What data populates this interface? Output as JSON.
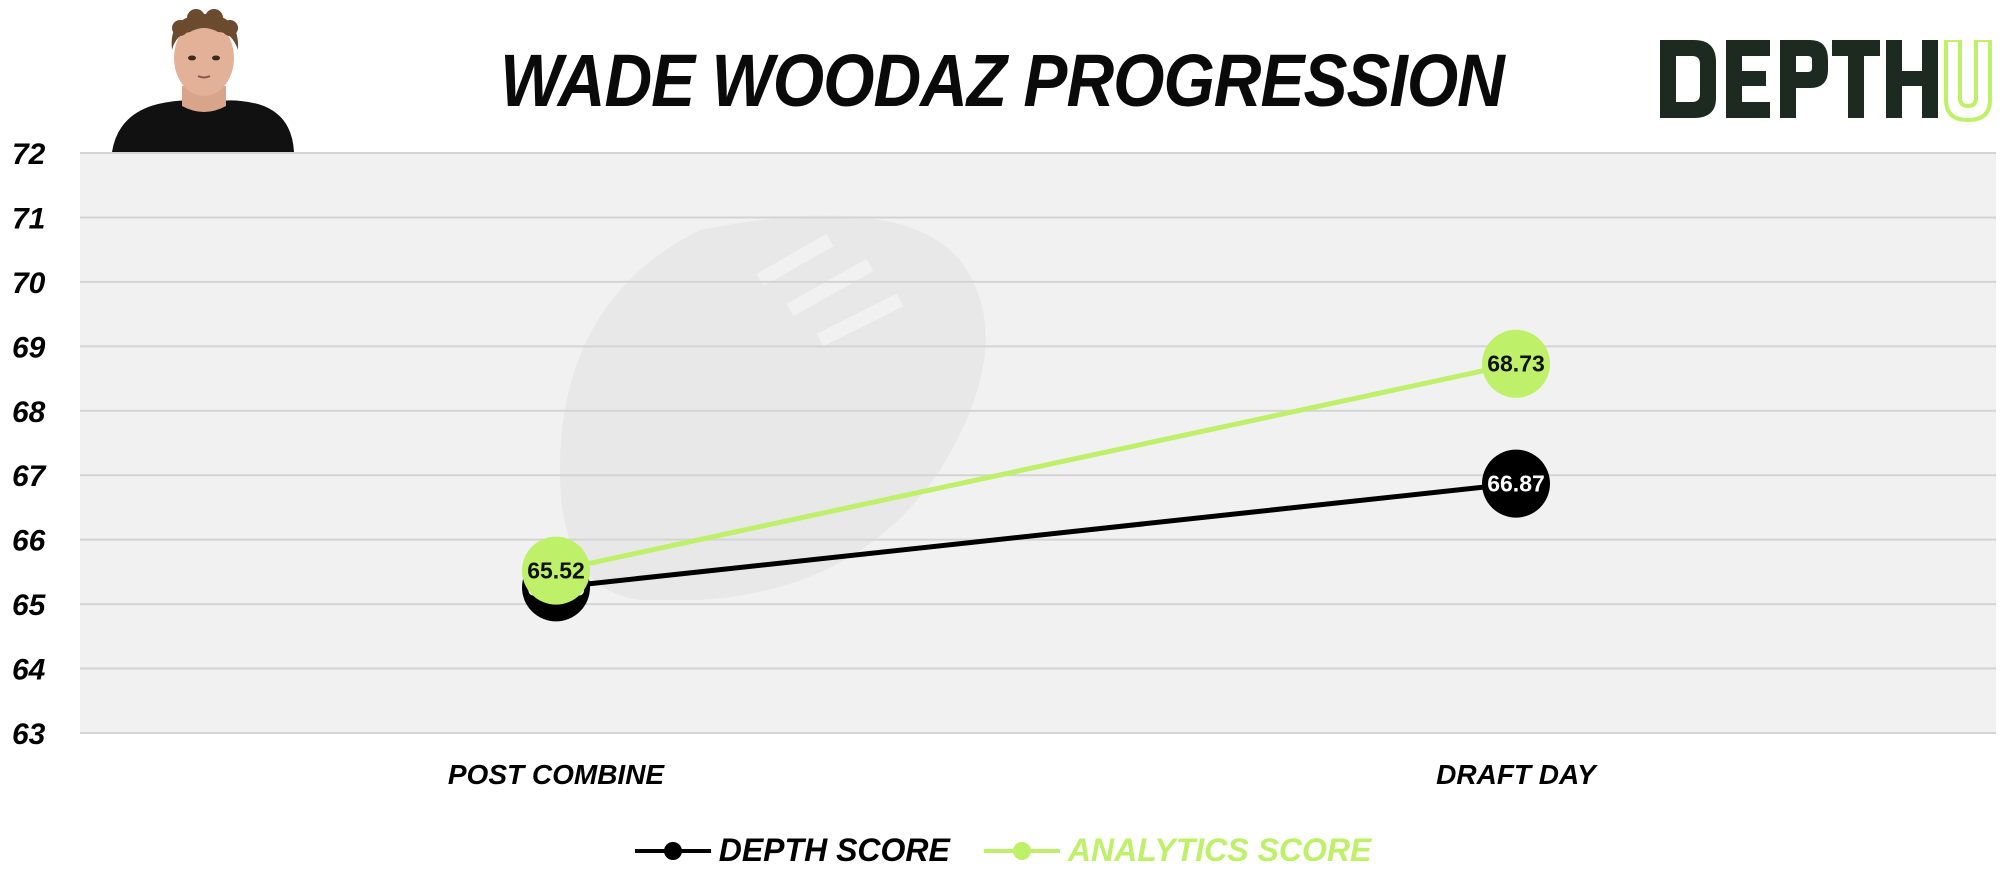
{
  "title": "WADE WOODAZ PROGRESSION",
  "logo": {
    "text": "DEPTH",
    "accent_text": "U"
  },
  "colors": {
    "depth": "#000000",
    "analytics": "#bff06a",
    "plot_bg": "#f1f1f1",
    "grid": "#d4d4d4"
  },
  "chart_data": {
    "type": "line",
    "title": "WADE WOODAZ PROGRESSION",
    "categories": [
      "POST COMBINE",
      "DRAFT DAY"
    ],
    "series": [
      {
        "name": "DEPTH SCORE",
        "color": "#000000",
        "values": [
          65.26,
          66.87
        ]
      },
      {
        "name": "ANALYTICS SCORE",
        "color": "#bff06a",
        "values": [
          65.52,
          68.73
        ]
      }
    ],
    "ylim": [
      63,
      72
    ],
    "yticks": [
      63,
      64,
      65,
      66,
      67,
      68,
      69,
      70,
      71,
      72
    ],
    "grid": true,
    "legend": "bottom"
  }
}
